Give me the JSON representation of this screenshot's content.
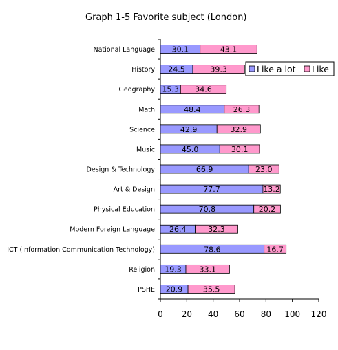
{
  "chart_data": {
    "type": "bar",
    "stacked": true,
    "orientation": "horizontal",
    "title": "Graph 1-5  Favorite subject (London)",
    "categories": [
      "National Language",
      "History",
      "Geography",
      "Math",
      "Science",
      "Music",
      "Design & Technology",
      "Art & Design",
      "Physical Education",
      "Modern Foreign Language",
      "ICT (Information Communication Technology)",
      "Religion",
      "PSHE"
    ],
    "series": [
      {
        "name": "Like a lot",
        "color": "#9999ff",
        "values": [
          30.1,
          24.5,
          15.3,
          48.4,
          42.9,
          45.0,
          66.9,
          77.7,
          70.8,
          26.4,
          78.6,
          19.3,
          20.9
        ]
      },
      {
        "name": "Like",
        "color": "#ff99cc",
        "values": [
          43.1,
          39.3,
          34.6,
          26.3,
          32.9,
          30.1,
          23.0,
          13.2,
          20.2,
          32.3,
          16.7,
          33.1,
          35.5
        ]
      }
    ],
    "xlim": [
      0,
      120
    ],
    "xticks": [
      0,
      20,
      40,
      60,
      80,
      100,
      120
    ],
    "grid": false,
    "legend_position": "top-right",
    "xlabel": "",
    "ylabel": ""
  }
}
